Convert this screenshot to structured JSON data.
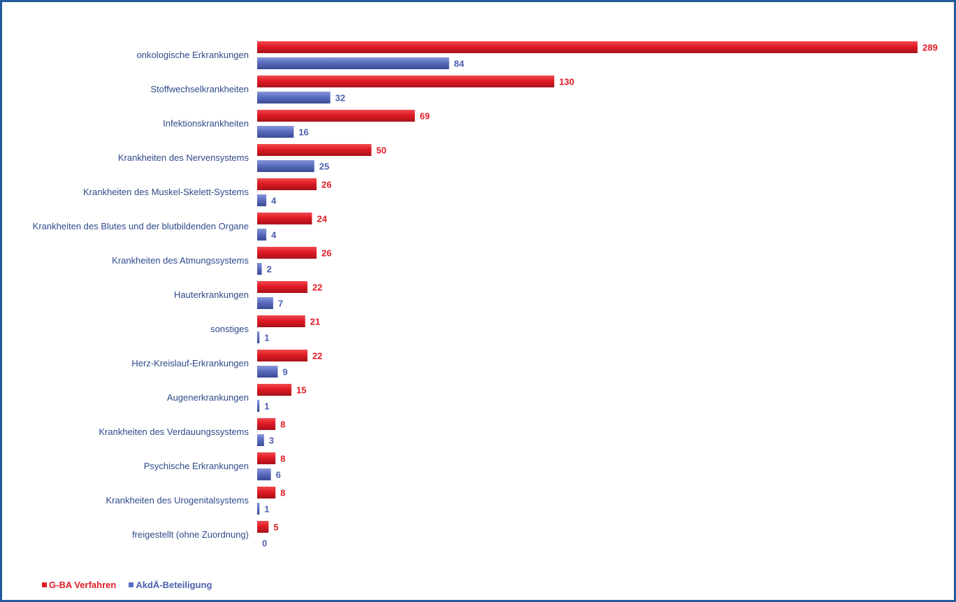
{
  "chart_data": {
    "type": "bar",
    "orientation": "horizontal",
    "categories": [
      "onkologische Erkrankungen",
      "Stoffwechselkrankheiten",
      "Infektionskrankheiten",
      "Krankheiten des Nervensystems",
      "Krankheiten des Muskel-Skelett-Systems",
      "Krankheiten des Blutes und der blutbildenden Organe",
      "Krankheiten des Atmungssystems",
      "Hauterkrankungen",
      "sonstiges",
      "Herz-Kreislauf-Erkrankungen",
      "Augenerkrankungen",
      "Krankheiten des Verdauungssystems",
      "Psychische Erkrankungen",
      "Krankheiten des Urogenitalsystems",
      "freigestellt (ohne Zuordnung)"
    ],
    "series": [
      {
        "name": "G-BA Verfahren",
        "color": "#e01b24",
        "label_color": "#e01b24",
        "values": [
          289,
          130,
          69,
          50,
          26,
          24,
          26,
          22,
          21,
          22,
          15,
          8,
          8,
          8,
          5
        ]
      },
      {
        "name": "AkdÄ-Beteiligung",
        "color": "#5b6dbf",
        "label_color": "#4a5fae",
        "values": [
          84,
          32,
          16,
          25,
          4,
          4,
          2,
          7,
          1,
          9,
          1,
          3,
          6,
          1,
          0
        ]
      }
    ],
    "xlim": [
      0,
      289
    ],
    "grid": false,
    "legend_position": "bottom-left",
    "title": "",
    "xlabel": "",
    "ylabel": ""
  }
}
